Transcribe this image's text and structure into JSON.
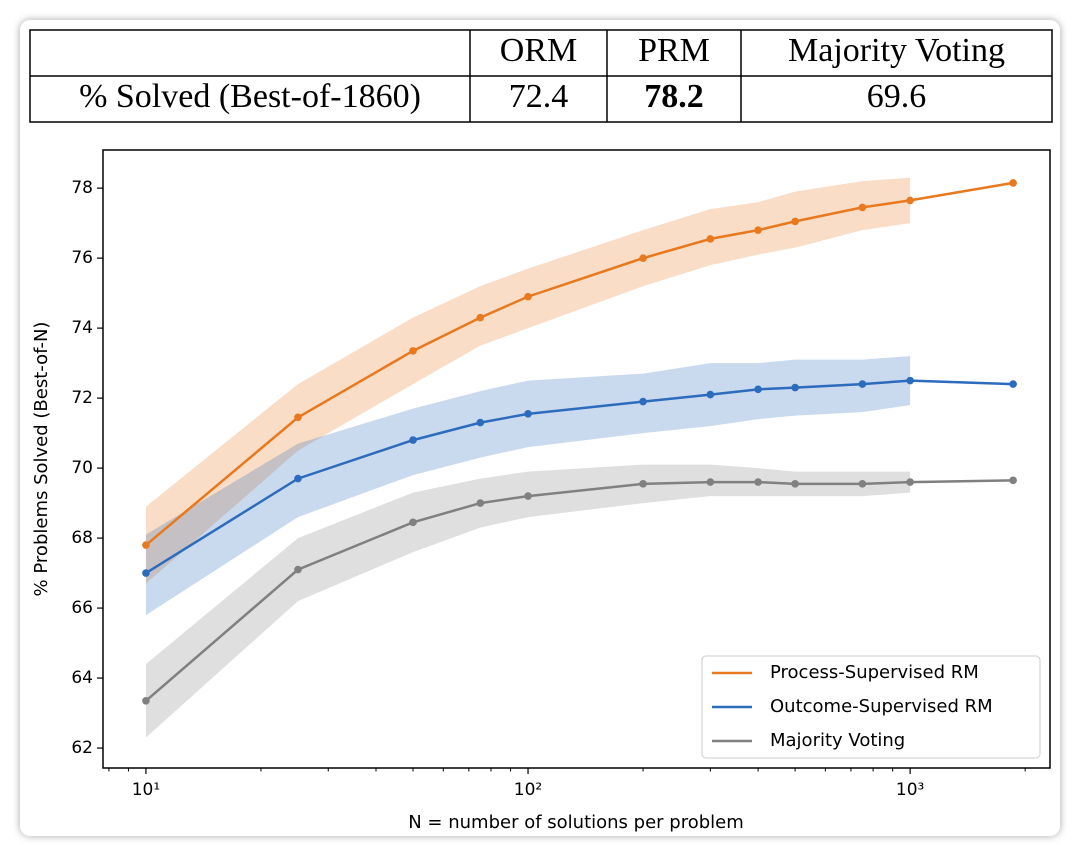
{
  "table": {
    "columns": [
      "ORM",
      "PRM",
      "Majority Voting"
    ],
    "row_label": "% Solved (Best-of-1860)",
    "values": [
      72.4,
      78.2,
      69.6
    ],
    "bold": [
      false,
      true,
      false
    ]
  },
  "chart_data": {
    "type": "line",
    "x_label": "N = number of solutions per problem",
    "y_label": "% Problems Solved (Best-of-N)",
    "x": [
      10,
      25,
      50,
      75,
      100,
      200,
      300,
      400,
      500,
      750,
      1000,
      1860
    ],
    "xscale": "log",
    "xlim": [
      7.72,
      2323
    ],
    "ylim": [
      61.43,
      79.09
    ],
    "xticks": [
      {
        "value": 10,
        "label": "10¹"
      },
      {
        "value": 100,
        "label": "10²"
      },
      {
        "value": 1000,
        "label": "10³"
      }
    ],
    "xminorticks": [
      8,
      9,
      20,
      30,
      40,
      50,
      60,
      70,
      80,
      90,
      200,
      300,
      400,
      500,
      600,
      700,
      800,
      900,
      2000
    ],
    "yticks": [
      62,
      64,
      66,
      68,
      70,
      72,
      74,
      76,
      78
    ],
    "grid": false,
    "legend": "lower right",
    "series": [
      {
        "name": "Process-Supervised RM",
        "color": "#e8791f",
        "values": [
          67.8,
          71.45,
          73.35,
          74.3,
          74.9,
          76.0,
          76.55,
          76.8,
          77.05,
          77.45,
          77.65,
          78.15
        ],
        "upper": [
          68.9,
          72.4,
          74.3,
          75.2,
          75.7,
          76.8,
          77.4,
          77.6,
          77.9,
          78.2,
          78.3,
          null
        ],
        "lower": [
          66.7,
          70.5,
          72.4,
          73.5,
          74.0,
          75.2,
          75.8,
          76.1,
          76.3,
          76.8,
          77.0,
          null
        ]
      },
      {
        "name": "Outcome-Supervised RM",
        "color": "#2d6bbd",
        "values": [
          67.0,
          69.7,
          70.8,
          71.3,
          71.55,
          71.9,
          72.1,
          72.25,
          72.3,
          72.4,
          72.5,
          72.4
        ],
        "upper": [
          68.1,
          70.7,
          71.7,
          72.2,
          72.5,
          72.7,
          73.0,
          73.0,
          73.1,
          73.1,
          73.2,
          null
        ],
        "lower": [
          65.8,
          68.6,
          69.8,
          70.3,
          70.6,
          71.0,
          71.2,
          71.4,
          71.5,
          71.6,
          71.8,
          null
        ]
      },
      {
        "name": "Majority Voting",
        "color": "#808080",
        "values": [
          63.35,
          67.1,
          68.45,
          69.0,
          69.2,
          69.55,
          69.6,
          69.6,
          69.55,
          69.55,
          69.6,
          69.65
        ],
        "upper": [
          64.4,
          68.0,
          69.3,
          69.7,
          69.9,
          70.1,
          70.1,
          70.0,
          69.9,
          69.9,
          69.9,
          null
        ],
        "lower": [
          62.3,
          66.2,
          67.6,
          68.3,
          68.6,
          69.0,
          69.2,
          69.2,
          69.2,
          69.2,
          69.3,
          null
        ]
      }
    ]
  }
}
